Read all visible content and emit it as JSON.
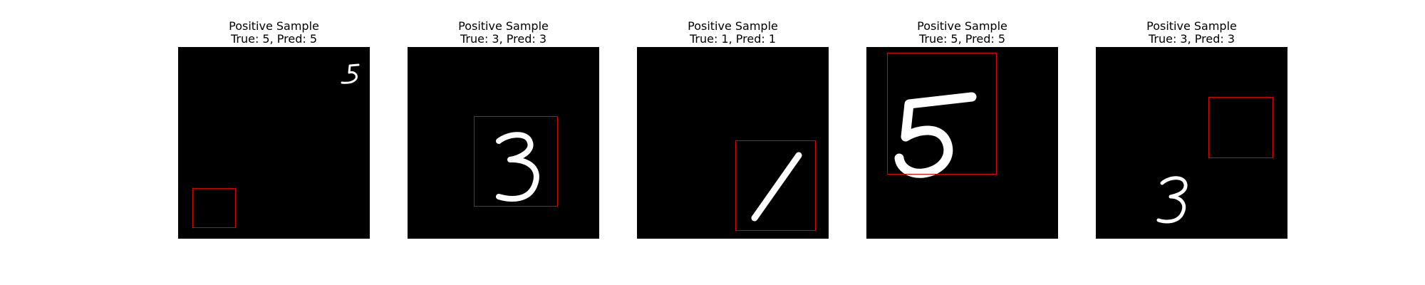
{
  "figure": {
    "panels": [
      {
        "title": "Positive Sample",
        "subtitle": "True: 5, Pred: 5",
        "digit": "5"
      },
      {
        "title": "Positive Sample",
        "subtitle": "True: 3, Pred: 3",
        "digit": "3"
      },
      {
        "title": "Positive Sample",
        "subtitle": "True: 1, Pred: 1",
        "digit": "1"
      },
      {
        "title": "Positive Sample",
        "subtitle": "True: 5, Pred: 5",
        "digit": "5"
      },
      {
        "title": "Positive Sample",
        "subtitle": "True: 3, Pred: 3",
        "digit": "3"
      }
    ],
    "colors": {
      "background": "#000000",
      "digit_stroke": "#ffffff",
      "box_stroke": "#e00000"
    }
  }
}
